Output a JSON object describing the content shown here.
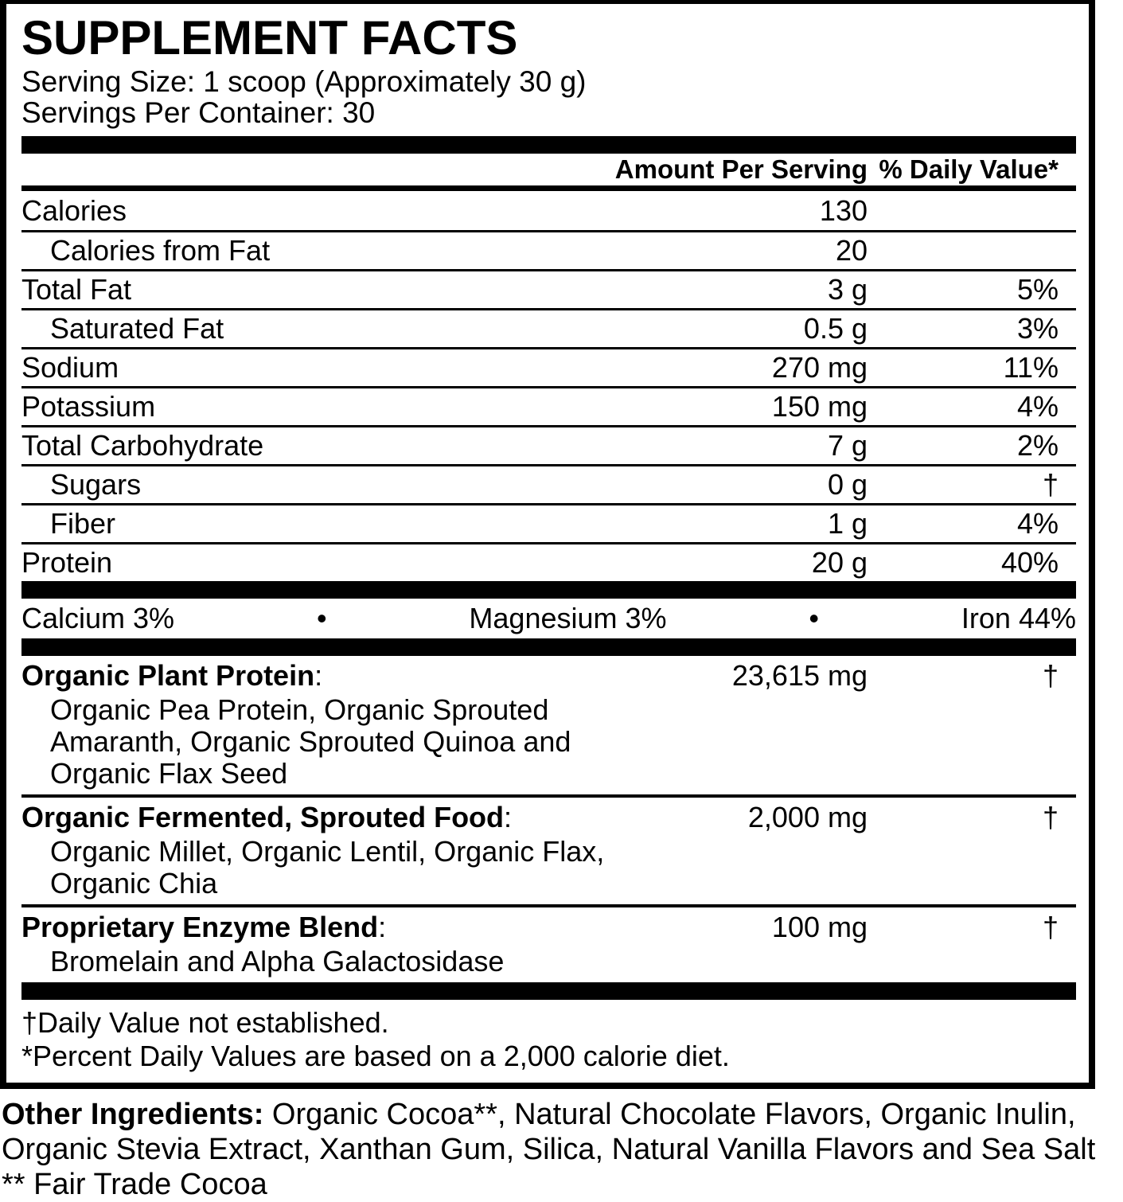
{
  "colors": {
    "ink": "#000000",
    "paper": "#ffffff"
  },
  "title": "SUPPLEMENT FACTS",
  "serving": {
    "size": "Serving Size: 1 scoop (Approximately 30 g)",
    "per_container": "Servings Per Container: 30"
  },
  "columns": {
    "amount": "Amount Per Serving",
    "dv": "% Daily Value*"
  },
  "nutrients": [
    {
      "label": "Calories",
      "amount": "130",
      "dv": "",
      "indent": false
    },
    {
      "label": "Calories from Fat",
      "amount": "20",
      "dv": "",
      "indent": true
    },
    {
      "label": "Total Fat",
      "amount": "3 g",
      "dv": "5%",
      "indent": false
    },
    {
      "label": "Saturated Fat",
      "amount": "0.5 g",
      "dv": "3%",
      "indent": true
    },
    {
      "label": "Sodium",
      "amount": "270 mg",
      "dv": "11%",
      "indent": false
    },
    {
      "label": "Potassium",
      "amount": "150 mg",
      "dv": "4%",
      "indent": false
    },
    {
      "label": "Total Carbohydrate",
      "amount": "7 g",
      "dv": "2%",
      "indent": false
    },
    {
      "label": "Sugars",
      "amount": "0 g",
      "dv": "†",
      "indent": true
    },
    {
      "label": "Fiber",
      "amount": "1 g",
      "dv": "4%",
      "indent": true
    },
    {
      "label": "Protein",
      "amount": "20 g",
      "dv": "40%",
      "indent": false
    }
  ],
  "minerals": {
    "calcium": "Calcium 3%",
    "bullet": "•",
    "magnesium": "Magnesium 3%",
    "iron": "Iron 44%"
  },
  "blends": [
    {
      "name": "Organic Plant Protein",
      "colon": ":",
      "amount": "23,615 mg",
      "dv": "†",
      "ingredient_lines": [
        "Organic Pea Protein, Organic Sprouted",
        "Amaranth, Organic Sprouted Quinoa and",
        "Organic Flax Seed"
      ]
    },
    {
      "name": "Organic Fermented, Sprouted Food",
      "colon": ":",
      "amount": "2,000 mg",
      "dv": "†",
      "ingredient_lines": [
        "Organic Millet, Organic Lentil, Organic Flax,",
        "Organic Chia"
      ]
    },
    {
      "name": "Proprietary Enzyme Blend",
      "colon": ":",
      "amount": "100 mg",
      "dv": "†",
      "ingredient_lines": [
        "Bromelain and Alpha Galactosidase"
      ]
    }
  ],
  "footnotes": [
    "†Daily Value not established.",
    "*Percent Daily Values are based on a 2,000 calorie diet."
  ],
  "other_ingredients": {
    "intro": "Other Ingredients:",
    "lines": [
      " Organic Cocoa**, Natural Chocolate Flavors, Organic Inulin,",
      "Organic Stevia Extract, Xanthan Gum, Silica, Natural Vanilla Flavors and Sea Salt",
      "** Fair Trade Cocoa"
    ]
  }
}
